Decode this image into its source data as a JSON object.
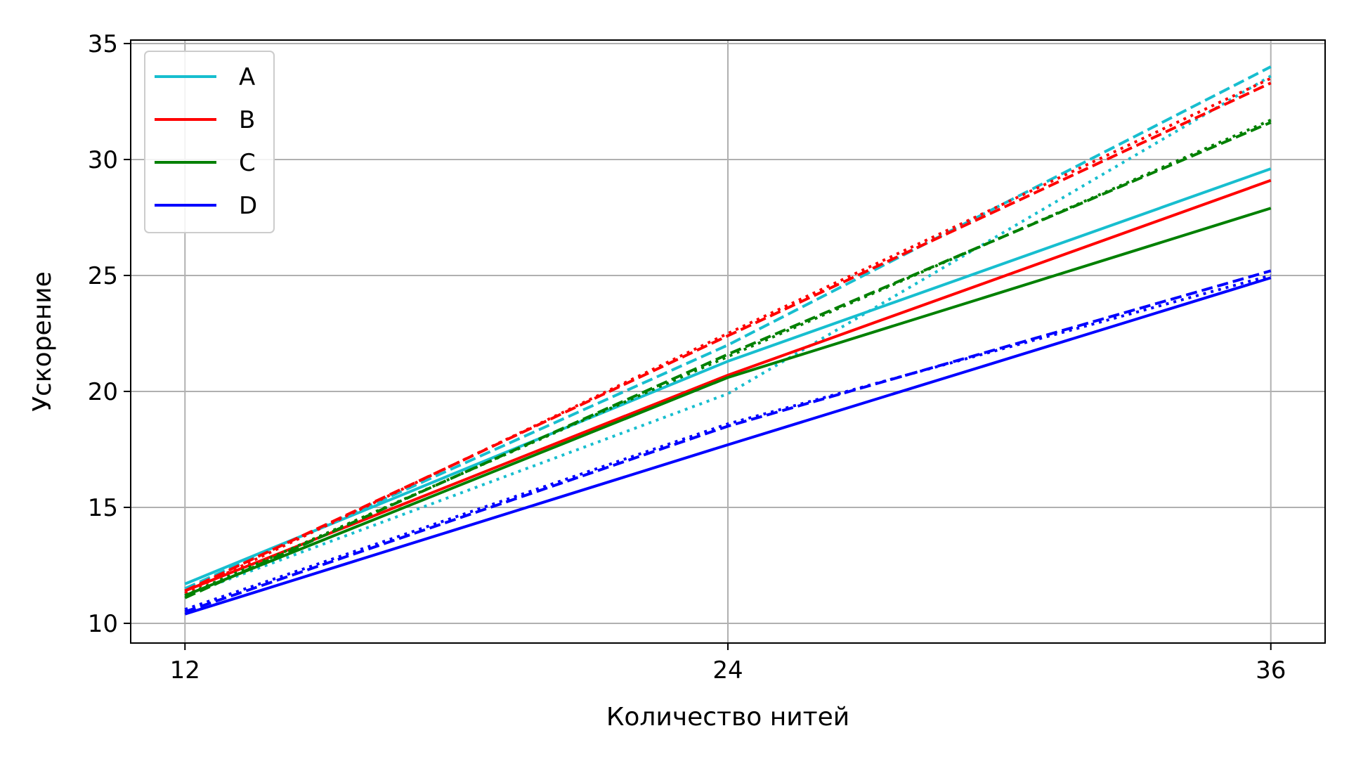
{
  "chart_data": {
    "type": "line",
    "xlabel": "Количество нитей",
    "ylabel": "Ускорение",
    "x": [
      12,
      24,
      36
    ],
    "xticks": [
      12,
      24,
      36
    ],
    "yticks": [
      10,
      15,
      20,
      25,
      30,
      35
    ],
    "xlim": [
      10.8,
      37.2
    ],
    "ylim": [
      9.15,
      35.15
    ],
    "grid": true,
    "legend_position": "top-left",
    "legend": [
      {
        "name": "A",
        "color": "#17becf"
      },
      {
        "name": "B",
        "color": "#ff0000"
      },
      {
        "name": "C",
        "color": "#008000"
      },
      {
        "name": "D",
        "color": "#0000ff"
      }
    ],
    "series": [
      {
        "group": "A",
        "style": "solid",
        "color": "#17becf",
        "values": [
          11.7,
          21.3,
          29.6
        ]
      },
      {
        "group": "A",
        "style": "dashed",
        "color": "#17becf",
        "values": [
          11.5,
          22.0,
          34.0
        ]
      },
      {
        "group": "A",
        "style": "dotted",
        "color": "#17becf",
        "values": [
          11.2,
          19.9,
          33.6
        ]
      },
      {
        "group": "B",
        "style": "solid",
        "color": "#ff0000",
        "values": [
          11.4,
          20.7,
          29.1
        ]
      },
      {
        "group": "B",
        "style": "dashed",
        "color": "#ff0000",
        "values": [
          11.4,
          22.4,
          33.3
        ]
      },
      {
        "group": "B",
        "style": "dotted",
        "color": "#ff0000",
        "values": [
          11.3,
          22.5,
          33.5
        ]
      },
      {
        "group": "C",
        "style": "solid",
        "color": "#008000",
        "values": [
          11.2,
          20.6,
          27.9
        ]
      },
      {
        "group": "C",
        "style": "dashed",
        "color": "#008000",
        "values": [
          11.1,
          21.6,
          31.6
        ]
      },
      {
        "group": "C",
        "style": "dotted",
        "color": "#008000",
        "values": [
          11.2,
          21.5,
          31.7
        ]
      },
      {
        "group": "D",
        "style": "solid",
        "color": "#0000ff",
        "values": [
          10.4,
          17.7,
          24.9
        ]
      },
      {
        "group": "D",
        "style": "dashed",
        "color": "#0000ff",
        "values": [
          10.5,
          18.5,
          25.2
        ]
      },
      {
        "group": "D",
        "style": "dotted",
        "color": "#0000ff",
        "values": [
          10.6,
          18.6,
          25.0
        ]
      }
    ]
  }
}
